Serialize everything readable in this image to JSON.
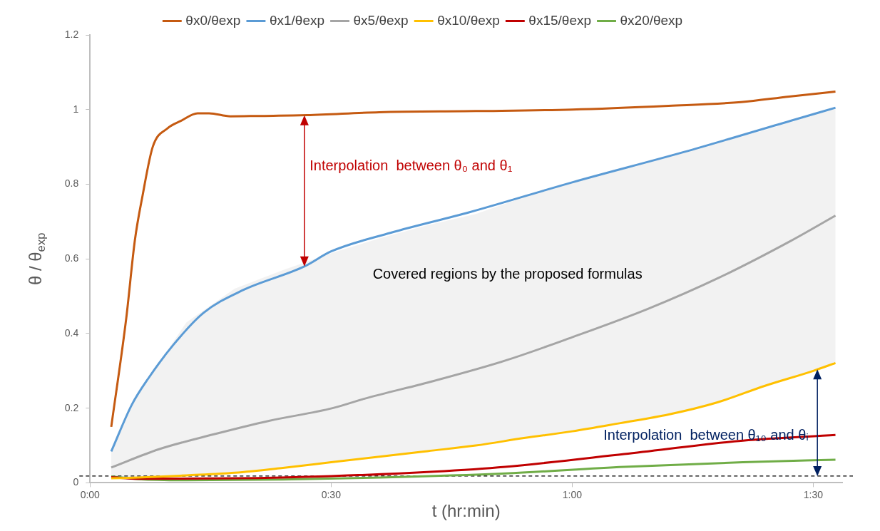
{
  "chart_data": {
    "type": "line",
    "xlabel": "t (hr:min)",
    "ylabel": "θ / θ$_{exp}$",
    "xlim": [
      0,
      1.56
    ],
    "xticks": [
      {
        "value": 0,
        "label": "0:00"
      },
      {
        "value": 0.5,
        "label": "0:30"
      },
      {
        "value": 1,
        "label": "1:00"
      },
      {
        "value": 1.5,
        "label": "1:30"
      }
    ],
    "ylim": [
      0,
      1.2
    ],
    "yticks": [
      0,
      0.2,
      0.4,
      0.6,
      0.8,
      1,
      1.2
    ],
    "grid": false,
    "legend": "top",
    "marker": "none",
    "line_style": "solid",
    "series": [
      {
        "name": "θx0/θexp",
        "color": "#c55a11",
        "x": [
          0.044,
          0.075,
          0.093,
          0.109,
          0.13,
          0.161,
          0.189,
          0.223,
          0.247,
          0.291,
          0.35,
          0.45,
          0.6,
          0.8,
          1.0,
          1.2,
          1.35,
          1.45,
          1.546
        ],
        "values": [
          0.15,
          0.44,
          0.65,
          0.77,
          0.9,
          0.95,
          0.97,
          0.99,
          0.99,
          0.982,
          0.983,
          0.985,
          0.993,
          0.996,
          1.0,
          1.01,
          1.02,
          1.035,
          1.048
        ]
      },
      {
        "name": "θx1/θexp",
        "color": "#5b9bd5",
        "x": [
          0.044,
          0.087,
          0.121,
          0.173,
          0.235,
          0.315,
          0.445,
          0.5,
          0.624,
          0.787,
          1.0,
          1.231,
          1.453,
          1.546
        ],
        "values": [
          0.084,
          0.21,
          0.28,
          0.37,
          0.455,
          0.515,
          0.58,
          0.62,
          0.67,
          0.725,
          0.805,
          0.886,
          0.97,
          1.005
        ]
      },
      {
        "name": "θx5/θexp",
        "color": "#a5a5a5",
        "x": [
          0.044,
          0.143,
          0.257,
          0.371,
          0.503,
          0.568,
          0.713,
          0.86,
          1.0,
          1.157,
          1.305,
          1.453,
          1.546
        ],
        "values": [
          0.041,
          0.09,
          0.13,
          0.166,
          0.2,
          0.225,
          0.273,
          0.327,
          0.39,
          0.466,
          0.55,
          0.648,
          0.716
        ]
      },
      {
        "name": "θx10/θexp",
        "color": "#ffc000",
        "x": [
          0.044,
          0.1,
          0.2,
          0.3,
          0.4,
          0.5,
          0.6,
          0.7,
          0.8,
          0.9,
          1.0,
          1.1,
          1.2,
          1.3,
          1.4,
          1.5,
          1.546
        ],
        "values": [
          0.012,
          0.014,
          0.02,
          0.027,
          0.04,
          0.055,
          0.07,
          0.085,
          0.1,
          0.12,
          0.138,
          0.16,
          0.183,
          0.215,
          0.26,
          0.3,
          0.321
        ],
        "upper": [
          0.084,
          0.24,
          0.43,
          0.52,
          0.57,
          0.615,
          0.655,
          0.69,
          0.72,
          0.765,
          0.805,
          0.84,
          0.875,
          0.91,
          0.945,
          0.985,
          1.005
        ],
        "lower": [
          0.012,
          0.014,
          0.02,
          0.027,
          0.04,
          0.055,
          0.07,
          0.085,
          0.1,
          0.12,
          0.138,
          0.16,
          0.183,
          0.215,
          0.26,
          0.3,
          0.321
        ]
      },
      {
        "name": "θx15/θexp",
        "color": "#c00000",
        "x": [
          0.044,
          0.1,
          0.3,
          0.5,
          0.713,
          0.861,
          1.108,
          1.354,
          1.546
        ],
        "values": [
          0.015,
          0.011,
          0.012,
          0.018,
          0.03,
          0.043,
          0.077,
          0.113,
          0.128
        ]
      },
      {
        "name": "θx20/θexp",
        "color": "#70ad47",
        "x": [
          0.044,
          0.1,
          0.2,
          0.4,
          0.6,
          0.861,
          1.108,
          1.354,
          1.546
        ],
        "values": [
          0.017,
          0.01,
          0.007,
          0.009,
          0.014,
          0.025,
          0.043,
          0.055,
          0.062
        ]
      }
    ],
    "ref_lines": [
      {
        "axis": "y",
        "value": 0.018,
        "color": "#000000",
        "line_style": "dashed"
      }
    ],
    "annotations": [
      "Interpolation  between θ₀ and θ₁",
      "Interpolation  between θ₁₀ and θᵢ",
      "Covered regions by the proposed formulas"
    ]
  }
}
